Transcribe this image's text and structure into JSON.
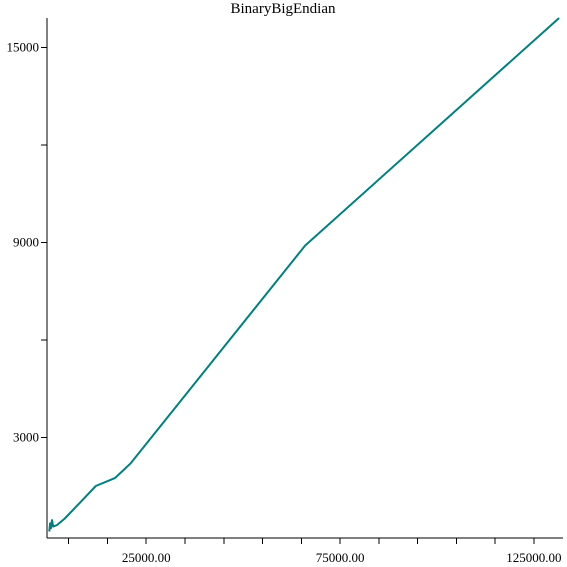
{
  "chart_data": {
    "type": "line",
    "title": "BinaryBigEndian",
    "xlabel": "",
    "ylabel": "",
    "xlim": [
      -600,
      132500
    ],
    "ylim": [
      -100,
      15900
    ],
    "x_ticks": [
      {
        "value": 25000,
        "label": "25000.00"
      },
      {
        "value": 75000,
        "label": "75000.00"
      },
      {
        "value": 125000,
        "label": "125000.00"
      }
    ],
    "x_minor_ticks": [
      5000,
      15000,
      35000,
      45000,
      55000,
      65000,
      85000,
      95000,
      105000,
      115000
    ],
    "y_ticks": [
      {
        "value": 3000,
        "label": "3000"
      },
      {
        "value": 9000,
        "label": "9000"
      },
      {
        "value": 15000,
        "label": "15000"
      }
    ],
    "y_minor_ticks": [
      6000,
      12000
    ],
    "grid": false,
    "line_color": "#008080",
    "series": [
      {
        "values": [
          [
            0,
            100
          ],
          [
            200,
            350
          ],
          [
            400,
            200
          ],
          [
            700,
            450
          ],
          [
            1000,
            250
          ],
          [
            2000,
            300
          ],
          [
            4000,
            500
          ],
          [
            8000,
            1000
          ],
          [
            12000,
            1500
          ],
          [
            17000,
            1750
          ],
          [
            21000,
            2200
          ],
          [
            66000,
            8900
          ],
          [
            131500,
            15900
          ]
        ]
      }
    ]
  }
}
